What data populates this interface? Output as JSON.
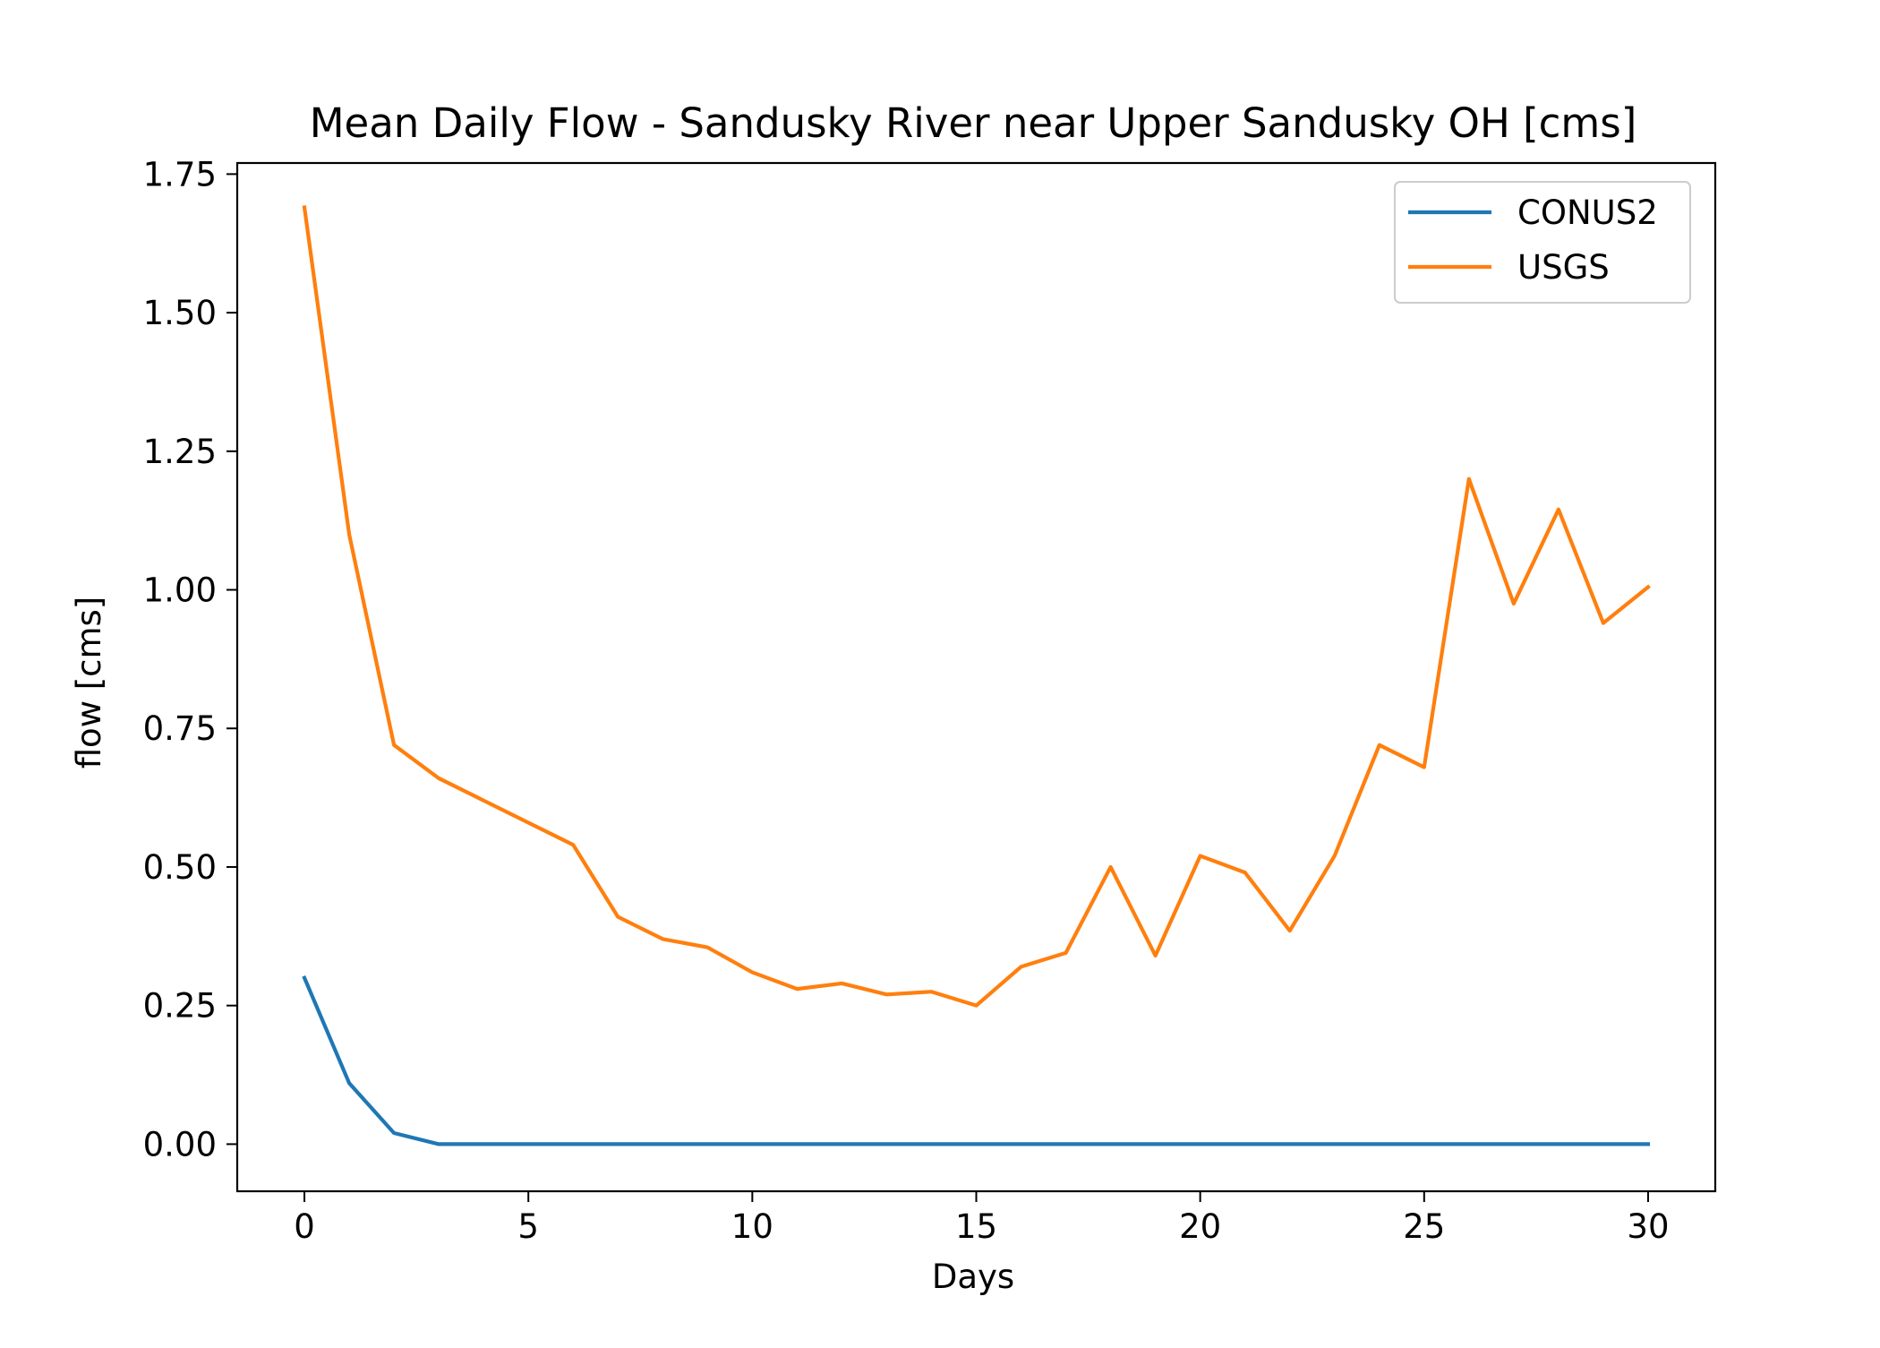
{
  "chart_data": {
    "type": "line",
    "title": "Mean Daily Flow - Sandusky River near Upper Sandusky OH [cms]",
    "xlabel": "Days",
    "ylabel": "flow [cms]",
    "xlim": [
      -1.5,
      31.5
    ],
    "ylim": [
      -0.085,
      1.77
    ],
    "xticks": [
      0,
      5,
      10,
      15,
      20,
      25,
      30
    ],
    "xtick_labels": [
      "0",
      "5",
      "10",
      "15",
      "20",
      "25",
      "30"
    ],
    "yticks": [
      0.0,
      0.25,
      0.5,
      0.75,
      1.0,
      1.25,
      1.5,
      1.75
    ],
    "ytick_labels": [
      "0.00",
      "0.25",
      "0.50",
      "0.75",
      "1.00",
      "1.25",
      "1.50",
      "1.75"
    ],
    "grid": false,
    "legend_position": "top-right",
    "x": [
      0,
      1,
      2,
      3,
      4,
      5,
      6,
      7,
      8,
      9,
      10,
      11,
      12,
      13,
      14,
      15,
      16,
      17,
      18,
      19,
      20,
      21,
      22,
      23,
      24,
      25,
      26,
      27,
      28,
      29,
      30
    ],
    "series": [
      {
        "name": "CONUS2",
        "color": "#1f77b4",
        "values": [
          0.3,
          0.11,
          0.02,
          0.0,
          0.0,
          0.0,
          0.0,
          0.0,
          0.0,
          0.0,
          0.0,
          0.0,
          0.0,
          0.0,
          0.0,
          0.0,
          0.0,
          0.0,
          0.0,
          0.0,
          0.0,
          0.0,
          0.0,
          0.0,
          0.0,
          0.0,
          0.0,
          0.0,
          0.0,
          0.0,
          0.0
        ]
      },
      {
        "name": "USGS",
        "color": "#ff7f0e",
        "values": [
          1.69,
          1.1,
          0.72,
          0.66,
          0.62,
          0.58,
          0.54,
          0.41,
          0.37,
          0.355,
          0.31,
          0.28,
          0.29,
          0.27,
          0.275,
          0.25,
          0.32,
          0.345,
          0.5,
          0.34,
          0.52,
          0.49,
          0.385,
          0.52,
          0.72,
          0.68,
          1.2,
          0.975,
          1.145,
          0.94,
          1.005
        ]
      }
    ]
  }
}
